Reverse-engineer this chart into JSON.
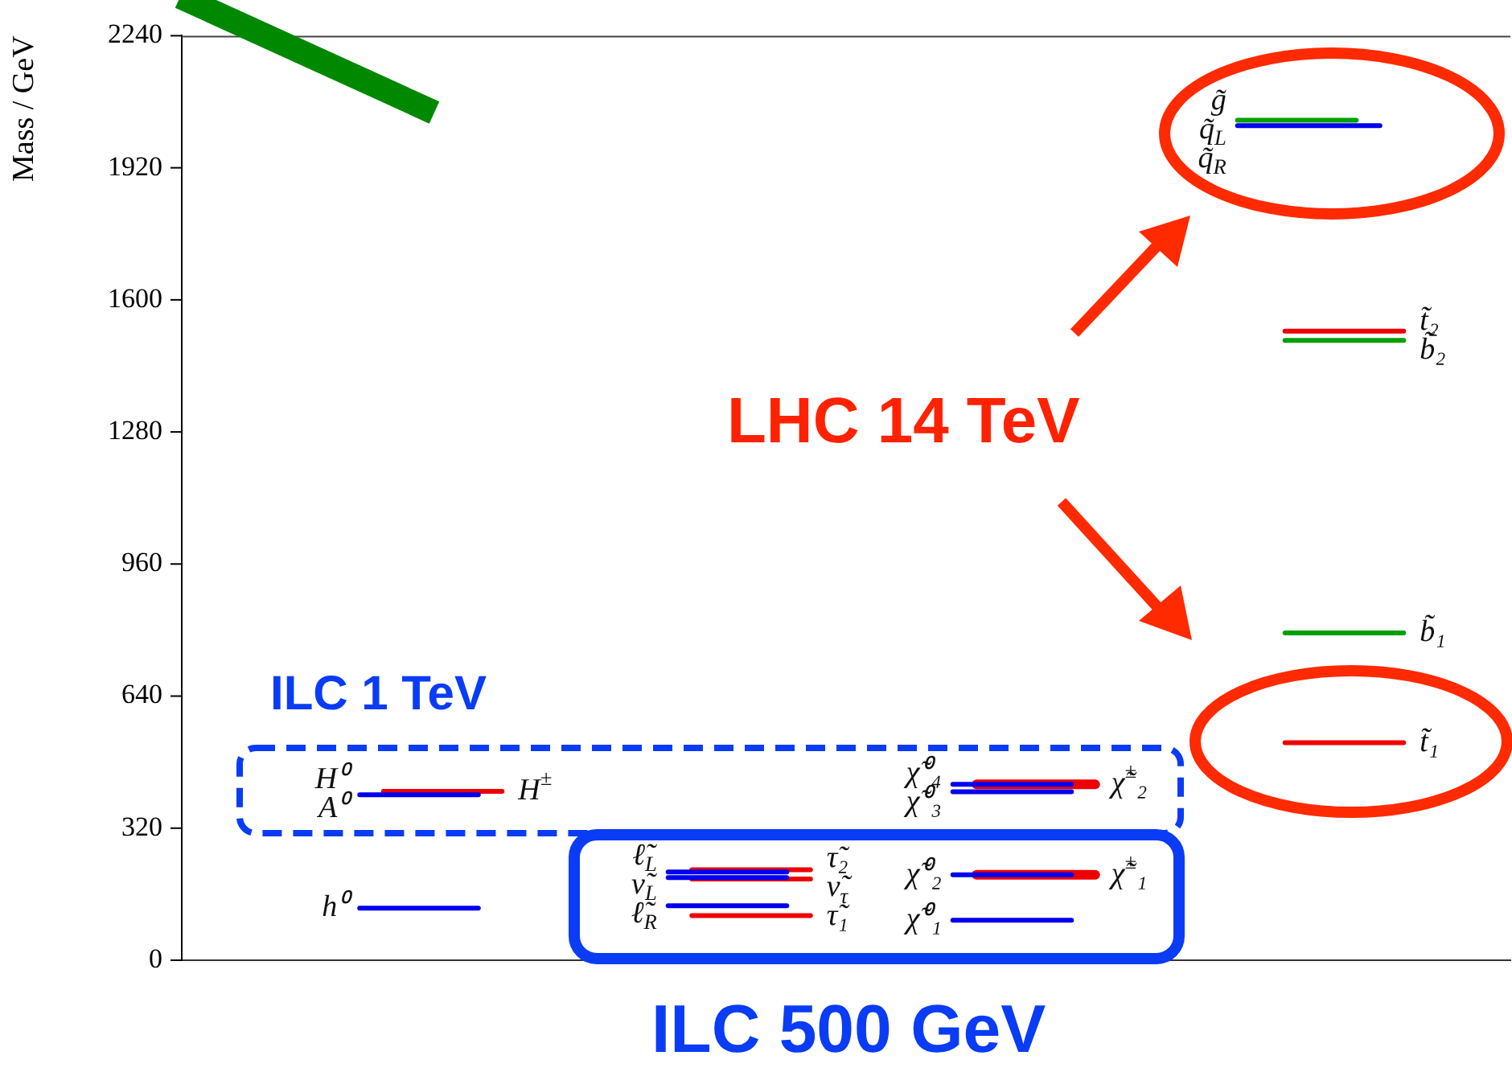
{
  "chart_data": {
    "type": "line",
    "ylabel": "Mass / GeV",
    "ylim": [
      0,
      2240
    ],
    "yticks": [
      0,
      320,
      640,
      960,
      1280,
      1600,
      1920,
      2240
    ],
    "grid": false,
    "marker": "none",
    "tick_labels": "y",
    "categories": [
      null,
      null,
      null,
      null,
      null,
      null,
      null,
      null,
      null,
      null,
      null,
      null,
      null,
      null,
      null,
      null,
      null,
      null,
      null,
      null,
      null,
      null,
      null,
      null,
      null,
      null,
      null,
      null,
      null,
      null,
      null,
      null,
      null,
      null,
      null,
      null,
      null,
      null,
      null,
      null,
      null,
      null,
      null,
      null,
      null,
      null,
      null,
      null,
      null,
      null,
      null,
      null,
      null,
      null,
      null,
      null
    ],
    "annotations": [
      "LHC 14 TeV",
      "ILC 1 TeV",
      "ILC 500 GeV"
    ],
    "series": [
      {
        "name": "h⁰",
        "color": "#0000ee",
        "values": [
          null,
          null,
          null,
          null,
          null,
          null,
          null,
          126,
          126,
          126,
          126,
          126,
          126,
          null,
          null,
          null,
          null,
          null,
          null,
          null,
          null,
          null,
          null,
          null,
          null,
          null,
          null,
          null,
          null,
          null,
          null,
          null,
          null,
          null,
          null,
          null,
          null,
          null,
          null,
          null,
          null,
          null,
          null,
          null,
          null,
          null,
          null,
          null,
          null,
          null,
          null,
          null,
          null,
          null,
          null,
          null
        ]
      },
      {
        "name": "H⁰\nA⁰",
        "color": "#0000ee",
        "values": [
          null,
          null,
          null,
          null,
          null,
          null,
          null,
          401,
          401,
          401,
          401,
          401,
          401,
          null,
          null,
          null,
          null,
          null,
          null,
          null,
          null,
          null,
          null,
          null,
          null,
          null,
          null,
          null,
          null,
          null,
          null,
          null,
          null,
          null,
          null,
          null,
          null,
          null,
          null,
          null,
          null,
          null,
          null,
          null,
          null,
          null,
          null,
          null,
          null,
          null,
          null,
          null,
          null,
          null,
          null,
          null
        ]
      },
      {
        "name": "H$^{±}$",
        "color": "#ee0000",
        "values": [
          null,
          null,
          null,
          null,
          null,
          null,
          null,
          null,
          409,
          409,
          409,
          409,
          409,
          409,
          null,
          null,
          null,
          null,
          null,
          null,
          null,
          null,
          null,
          null,
          null,
          null,
          null,
          null,
          null,
          null,
          null,
          null,
          null,
          null,
          null,
          null,
          null,
          null,
          null,
          null,
          null,
          null,
          null,
          null,
          null,
          null,
          null,
          null,
          null,
          null,
          null,
          null,
          null,
          null,
          null,
          null
        ]
      },
      {
        "name": "ℓ̃$_{L}$",
        "color": "#0000ee",
        "values": [
          null,
          null,
          null,
          null,
          null,
          null,
          null,
          null,
          null,
          null,
          null,
          null,
          null,
          null,
          null,
          null,
          null,
          null,
          null,
          null,
          214,
          214,
          214,
          214,
          214,
          214,
          null,
          null,
          null,
          null,
          null,
          null,
          null,
          null,
          null,
          null,
          null,
          null,
          null,
          null,
          null,
          null,
          null,
          null,
          null,
          null,
          null,
          null,
          null,
          null,
          null,
          null,
          null,
          null,
          null,
          null
        ]
      },
      {
        "name": "ν̃$_{L}$",
        "color": "#0000ee",
        "values": [
          null,
          null,
          null,
          null,
          null,
          null,
          null,
          null,
          null,
          null,
          null,
          null,
          null,
          null,
          null,
          null,
          null,
          null,
          null,
          null,
          200,
          200,
          200,
          200,
          200,
          200,
          null,
          null,
          null,
          null,
          null,
          null,
          null,
          null,
          null,
          null,
          null,
          null,
          null,
          null,
          null,
          null,
          null,
          null,
          null,
          null,
          null,
          null,
          null,
          null,
          null,
          null,
          null,
          null,
          null,
          null
        ]
      },
      {
        "name": "τ̃₂",
        "color": "#ee0000",
        "values": [
          null,
          null,
          null,
          null,
          null,
          null,
          null,
          null,
          null,
          null,
          null,
          null,
          null,
          null,
          null,
          null,
          null,
          null,
          null,
          null,
          null,
          219,
          219,
          219,
          219,
          219,
          219,
          null,
          null,
          null,
          null,
          null,
          null,
          null,
          null,
          null,
          null,
          null,
          null,
          null,
          null,
          null,
          null,
          null,
          null,
          null,
          null,
          null,
          null,
          null,
          null,
          null,
          null,
          null,
          null,
          null
        ]
      },
      {
        "name": "ν̃$_{τ}$",
        "color": "#ee0000",
        "values": [
          null,
          null,
          null,
          null,
          null,
          null,
          null,
          null,
          null,
          null,
          null,
          null,
          null,
          null,
          null,
          null,
          null,
          null,
          null,
          null,
          null,
          197,
          197,
          197,
          197,
          197,
          197,
          null,
          null,
          null,
          null,
          null,
          null,
          null,
          null,
          null,
          null,
          null,
          null,
          null,
          null,
          null,
          null,
          null,
          null,
          null,
          null,
          null,
          null,
          null,
          null,
          null,
          null,
          null,
          null,
          null
        ]
      },
      {
        "name": "ℓ̃$_{R}$",
        "color": "#0000ee",
        "values": [
          null,
          null,
          null,
          null,
          null,
          null,
          null,
          null,
          null,
          null,
          null,
          null,
          null,
          null,
          null,
          null,
          null,
          null,
          null,
          null,
          132,
          132,
          132,
          132,
          132,
          132,
          null,
          null,
          null,
          null,
          null,
          null,
          null,
          null,
          null,
          null,
          null,
          null,
          null,
          null,
          null,
          null,
          null,
          null,
          null,
          null,
          null,
          null,
          null,
          null,
          null,
          null,
          null,
          null,
          null,
          null
        ]
      },
      {
        "name": "τ̃₁",
        "color": "#ee0000",
        "values": [
          null,
          null,
          null,
          null,
          null,
          null,
          null,
          null,
          null,
          null,
          null,
          null,
          null,
          null,
          null,
          null,
          null,
          null,
          null,
          null,
          null,
          108,
          108,
          108,
          108,
          108,
          108,
          null,
          null,
          null,
          null,
          null,
          null,
          null,
          null,
          null,
          null,
          null,
          null,
          null,
          null,
          null,
          null,
          null,
          null,
          null,
          null,
          null,
          null,
          null,
          null,
          null,
          null,
          null,
          null,
          null
        ]
      },
      {
        "name": "χ̃⁰₄",
        "color": "#0000ee",
        "values": [
          null,
          null,
          null,
          null,
          null,
          null,
          null,
          null,
          null,
          null,
          null,
          null,
          null,
          null,
          null,
          null,
          null,
          null,
          null,
          null,
          null,
          null,
          null,
          null,
          null,
          null,
          null,
          null,
          null,
          null,
          null,
          null,
          426,
          426,
          426,
          426,
          426,
          426,
          null,
          null,
          null,
          null,
          null,
          null,
          null,
          null,
          null,
          null,
          null,
          null,
          null,
          null,
          null,
          null,
          null,
          null
        ]
      },
      {
        "name": "χ̃⁰₃",
        "color": "#0000ee",
        "values": [
          null,
          null,
          null,
          null,
          null,
          null,
          null,
          null,
          null,
          null,
          null,
          null,
          null,
          null,
          null,
          null,
          null,
          null,
          null,
          null,
          null,
          null,
          null,
          null,
          null,
          null,
          null,
          null,
          null,
          null,
          null,
          null,
          408,
          408,
          408,
          408,
          408,
          408,
          null,
          null,
          null,
          null,
          null,
          null,
          null,
          null,
          null,
          null,
          null,
          null,
          null,
          null,
          null,
          null,
          null,
          null
        ]
      },
      {
        "name": "χ̃$^{±}$₂",
        "color": "#ee0000",
        "values": [
          null,
          null,
          null,
          null,
          null,
          null,
          null,
          null,
          null,
          null,
          null,
          null,
          null,
          null,
          null,
          null,
          null,
          null,
          null,
          null,
          null,
          null,
          null,
          null,
          null,
          null,
          null,
          null,
          null,
          null,
          null,
          null,
          null,
          426,
          426,
          426,
          426,
          426,
          426,
          null,
          null,
          null,
          null,
          null,
          null,
          null,
          null,
          null,
          null,
          null,
          null,
          null,
          null,
          null,
          null,
          null
        ]
      },
      {
        "name": "χ̃⁰₂",
        "color": "#0000ee",
        "values": [
          null,
          null,
          null,
          null,
          null,
          null,
          null,
          null,
          null,
          null,
          null,
          null,
          null,
          null,
          null,
          null,
          null,
          null,
          null,
          null,
          null,
          null,
          null,
          null,
          null,
          null,
          null,
          null,
          null,
          null,
          null,
          null,
          207,
          207,
          207,
          207,
          207,
          207,
          null,
          null,
          null,
          null,
          null,
          null,
          null,
          null,
          null,
          null,
          null,
          null,
          null,
          null,
          null,
          null,
          null,
          null
        ]
      },
      {
        "name": "χ̃$^{±}$₁",
        "color": "#ee0000",
        "values": [
          null,
          null,
          null,
          null,
          null,
          null,
          null,
          null,
          null,
          null,
          null,
          null,
          null,
          null,
          null,
          null,
          null,
          null,
          null,
          null,
          null,
          null,
          null,
          null,
          null,
          null,
          null,
          null,
          null,
          null,
          null,
          null,
          null,
          207,
          207,
          207,
          207,
          207,
          207,
          null,
          null,
          null,
          null,
          null,
          null,
          null,
          null,
          null,
          null,
          null,
          null,
          null,
          null,
          null,
          null,
          null
        ]
      },
      {
        "name": "χ̃⁰₁",
        "color": "#0000ee",
        "values": [
          null,
          null,
          null,
          null,
          null,
          null,
          null,
          null,
          null,
          null,
          null,
          null,
          null,
          null,
          null,
          null,
          null,
          null,
          null,
          null,
          null,
          null,
          null,
          null,
          null,
          null,
          null,
          null,
          null,
          null,
          null,
          null,
          97,
          97,
          97,
          97,
          97,
          97,
          null,
          null,
          null,
          null,
          null,
          null,
          null,
          null,
          null,
          null,
          null,
          null,
          null,
          null,
          null,
          null,
          null,
          null
        ]
      },
      {
        "name": "g̃",
        "color": "#00a000",
        "values": [
          null,
          null,
          null,
          null,
          null,
          null,
          null,
          null,
          null,
          null,
          null,
          null,
          null,
          null,
          null,
          null,
          null,
          null,
          null,
          null,
          null,
          null,
          null,
          null,
          null,
          null,
          null,
          null,
          null,
          null,
          null,
          null,
          null,
          null,
          null,
          null,
          null,
          null,
          null,
          null,
          null,
          null,
          null,
          null,
          2035,
          2035,
          2035,
          2035,
          2035,
          2035,
          null,
          null,
          null,
          null,
          null,
          null
        ]
      },
      {
        "name": "q̃$_{L}$\nq̃$_{R}$",
        "color": "#0000ee",
        "values": [
          null,
          null,
          null,
          null,
          null,
          null,
          null,
          null,
          null,
          null,
          null,
          null,
          null,
          null,
          null,
          null,
          null,
          null,
          null,
          null,
          null,
          null,
          null,
          null,
          null,
          null,
          null,
          null,
          null,
          null,
          null,
          null,
          null,
          null,
          null,
          null,
          null,
          null,
          null,
          null,
          null,
          null,
          null,
          null,
          2022,
          2022,
          2022,
          2022,
          2022,
          2022,
          2022,
          null,
          null,
          null,
          null,
          null
        ]
      },
      {
        "name": "t̃₂",
        "color": "#ee0000",
        "values": [
          null,
          null,
          null,
          null,
          null,
          null,
          null,
          null,
          null,
          null,
          null,
          null,
          null,
          null,
          null,
          null,
          null,
          null,
          null,
          null,
          null,
          null,
          null,
          null,
          null,
          null,
          null,
          null,
          null,
          null,
          null,
          null,
          null,
          null,
          null,
          null,
          null,
          null,
          null,
          null,
          null,
          null,
          null,
          null,
          null,
          null,
          1524,
          1524,
          1524,
          1524,
          1524,
          1524,
          null,
          null,
          null,
          null
        ]
      },
      {
        "name": "b̃₂",
        "color": "#00a000",
        "values": [
          null,
          null,
          null,
          null,
          null,
          null,
          null,
          null,
          null,
          null,
          null,
          null,
          null,
          null,
          null,
          null,
          null,
          null,
          null,
          null,
          null,
          null,
          null,
          null,
          null,
          null,
          null,
          null,
          null,
          null,
          null,
          null,
          null,
          null,
          null,
          null,
          null,
          null,
          null,
          null,
          null,
          null,
          null,
          null,
          null,
          null,
          1502,
          1502,
          1502,
          1502,
          1502,
          1502,
          null,
          null,
          null,
          null
        ]
      },
      {
        "name": "b̃₁",
        "color": "#00a000",
        "values": [
          null,
          null,
          null,
          null,
          null,
          null,
          null,
          null,
          null,
          null,
          null,
          null,
          null,
          null,
          null,
          null,
          null,
          null,
          null,
          null,
          null,
          null,
          null,
          null,
          null,
          null,
          null,
          null,
          null,
          null,
          null,
          null,
          null,
          null,
          null,
          null,
          null,
          null,
          null,
          null,
          null,
          null,
          null,
          null,
          null,
          null,
          793,
          793,
          793,
          793,
          793,
          793,
          null,
          null,
          null,
          null
        ]
      },
      {
        "name": "t̃₁",
        "color": "#ee0000",
        "values": [
          null,
          null,
          null,
          null,
          null,
          null,
          null,
          null,
          null,
          null,
          null,
          null,
          null,
          null,
          null,
          null,
          null,
          null,
          null,
          null,
          null,
          null,
          null,
          null,
          null,
          null,
          null,
          null,
          null,
          null,
          null,
          null,
          null,
          null,
          null,
          null,
          null,
          null,
          null,
          null,
          null,
          null,
          null,
          null,
          null,
          null,
          527,
          527,
          527,
          527,
          527,
          527,
          null,
          null,
          null,
          null
        ]
      }
    ]
  }
}
